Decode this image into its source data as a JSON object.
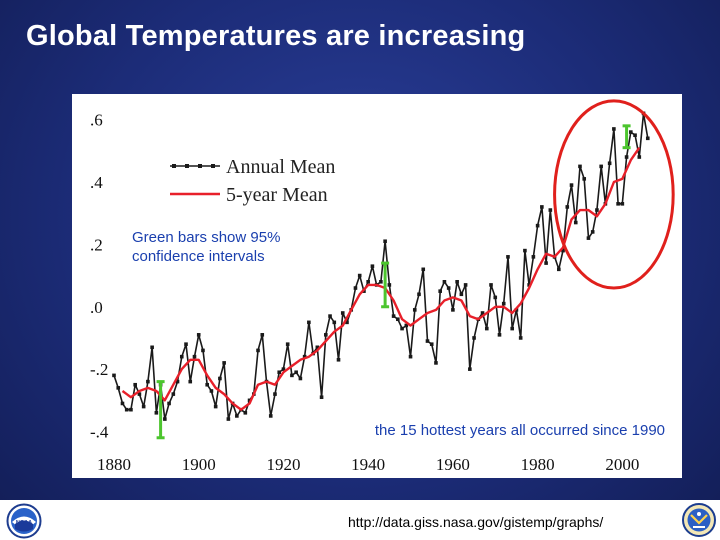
{
  "slide": {
    "title": "Global Temperatures are increasing",
    "source_url": "http://data.giss.nasa.gov/gistemp/graphs/",
    "logo_left_text": "NOAA"
  },
  "colors": {
    "annual": "#1a1a1a",
    "five_year": "#e8202a",
    "confidence": "#4cc52e",
    "highlight": "#e0201c",
    "annotation": "#1a3fae"
  },
  "chart_data": {
    "type": "line",
    "title": "",
    "xlabel": "",
    "ylabel": "",
    "xlim": [
      1880,
      2007
    ],
    "ylim": [
      -0.44,
      0.65
    ],
    "x_ticks": [
      1880,
      1900,
      1920,
      1940,
      1960,
      1980,
      2000
    ],
    "y_ticks": [
      {
        "value": 0.6,
        "label": ".6"
      },
      {
        "value": 0.4,
        "label": ".4"
      },
      {
        "value": 0.2,
        "label": ".2"
      },
      {
        "value": 0.0,
        "label": ".0"
      },
      {
        "value": -0.2,
        "label": "-.2"
      },
      {
        "value": -0.4,
        "label": "-.4"
      }
    ],
    "legend": {
      "placement": "top-left",
      "entries": [
        {
          "label": "Annual Mean",
          "series": "annual"
        },
        {
          "label": "5-year Mean",
          "series": "five_year"
        }
      ]
    },
    "annotations": [
      {
        "text_lines": [
          "Green bars show 95%",
          "confidence intervals"
        ]
      },
      {
        "text_lines": [
          "the 15 hottest years all occurred since 1990"
        ]
      }
    ],
    "highlight_ellipse": {
      "x_center": 1998,
      "y_center": 0.36,
      "x_halfwidth": 14,
      "y_halfwidth": 0.3
    },
    "series": [
      {
        "key": "annual",
        "name": "Annual Mean",
        "x": [
          1880,
          1881,
          1882,
          1883,
          1884,
          1885,
          1886,
          1887,
          1888,
          1889,
          1890,
          1891,
          1892,
          1893,
          1894,
          1895,
          1896,
          1897,
          1898,
          1899,
          1900,
          1901,
          1902,
          1903,
          1904,
          1905,
          1906,
          1907,
          1908,
          1909,
          1910,
          1911,
          1912,
          1913,
          1914,
          1915,
          1916,
          1917,
          1918,
          1919,
          1920,
          1921,
          1922,
          1923,
          1924,
          1925,
          1926,
          1927,
          1928,
          1929,
          1930,
          1931,
          1932,
          1933,
          1934,
          1935,
          1936,
          1937,
          1938,
          1939,
          1940,
          1941,
          1942,
          1943,
          1944,
          1945,
          1946,
          1947,
          1948,
          1949,
          1950,
          1951,
          1952,
          1953,
          1954,
          1955,
          1956,
          1957,
          1958,
          1959,
          1960,
          1961,
          1962,
          1963,
          1964,
          1965,
          1966,
          1967,
          1968,
          1969,
          1970,
          1971,
          1972,
          1973,
          1974,
          1975,
          1976,
          1977,
          1978,
          1979,
          1980,
          1981,
          1982,
          1983,
          1984,
          1985,
          1986,
          1987,
          1988,
          1989,
          1990,
          1991,
          1992,
          1993,
          1994,
          1995,
          1996,
          1997,
          1998,
          1999,
          2000,
          2001,
          2002,
          2003,
          2004,
          2005,
          2006
        ],
        "values": [
          -0.22,
          -0.26,
          -0.31,
          -0.33,
          -0.33,
          -0.25,
          -0.28,
          -0.32,
          -0.24,
          -0.13,
          -0.34,
          -0.25,
          -0.36,
          -0.31,
          -0.28,
          -0.24,
          -0.16,
          -0.12,
          -0.24,
          -0.16,
          -0.09,
          -0.14,
          -0.25,
          -0.27,
          -0.32,
          -0.23,
          -0.18,
          -0.36,
          -0.31,
          -0.35,
          -0.33,
          -0.34,
          -0.3,
          -0.28,
          -0.14,
          -0.09,
          -0.24,
          -0.35,
          -0.28,
          -0.21,
          -0.2,
          -0.12,
          -0.22,
          -0.21,
          -0.23,
          -0.16,
          -0.05,
          -0.15,
          -0.13,
          -0.29,
          -0.09,
          -0.03,
          -0.05,
          -0.17,
          -0.02,
          -0.05,
          -0.01,
          0.06,
          0.1,
          0.05,
          0.08,
          0.13,
          0.07,
          0.08,
          0.21,
          0.07,
          -0.03,
          -0.04,
          -0.07,
          -0.06,
          -0.16,
          -0.01,
          0.04,
          0.12,
          -0.11,
          -0.12,
          -0.18,
          0.05,
          0.08,
          0.06,
          -0.01,
          0.08,
          0.04,
          0.07,
          -0.2,
          -0.1,
          -0.04,
          -0.02,
          -0.07,
          0.07,
          0.03,
          -0.09,
          0.01,
          0.16,
          -0.07,
          -0.01,
          -0.1,
          0.18,
          0.07,
          0.16,
          0.26,
          0.32,
          0.14,
          0.31,
          0.16,
          0.12,
          0.18,
          0.32,
          0.39,
          0.27,
          0.45,
          0.41,
          0.22,
          0.24,
          0.31,
          0.45,
          0.33,
          0.46,
          0.57,
          0.33,
          0.33,
          0.48,
          0.56,
          0.55,
          0.48,
          0.62,
          0.54
        ]
      },
      {
        "key": "five_year",
        "name": "5-year Mean",
        "x": [
          1882,
          1884,
          1886,
          1888,
          1890,
          1892,
          1894,
          1896,
          1898,
          1900,
          1902,
          1904,
          1906,
          1908,
          1910,
          1912,
          1914,
          1916,
          1918,
          1920,
          1922,
          1924,
          1926,
          1928,
          1930,
          1932,
          1934,
          1936,
          1938,
          1940,
          1942,
          1944,
          1946,
          1948,
          1950,
          1952,
          1954,
          1956,
          1958,
          1960,
          1962,
          1964,
          1966,
          1968,
          1970,
          1972,
          1974,
          1976,
          1978,
          1980,
          1982,
          1984,
          1986,
          1988,
          1990,
          1992,
          1994,
          1996,
          1998,
          2000,
          2002,
          2004
        ],
        "values": [
          -0.27,
          -0.29,
          -0.27,
          -0.26,
          -0.27,
          -0.3,
          -0.25,
          -0.2,
          -0.17,
          -0.17,
          -0.22,
          -0.26,
          -0.28,
          -0.31,
          -0.33,
          -0.31,
          -0.25,
          -0.24,
          -0.25,
          -0.21,
          -0.19,
          -0.17,
          -0.16,
          -0.14,
          -0.11,
          -0.08,
          -0.06,
          -0.01,
          0.04,
          0.07,
          0.07,
          0.06,
          0.02,
          -0.04,
          -0.06,
          -0.04,
          -0.02,
          -0.01,
          0.02,
          0.03,
          0.02,
          -0.03,
          -0.04,
          -0.02,
          0.0,
          0.0,
          -0.02,
          0.01,
          0.06,
          0.12,
          0.17,
          0.16,
          0.19,
          0.28,
          0.31,
          0.31,
          0.29,
          0.33,
          0.4,
          0.41,
          0.47,
          0.51
        ]
      }
    ],
    "confidence_intervals": [
      {
        "x": 1891,
        "low": -0.42,
        "high": -0.24
      },
      {
        "x": 1944,
        "low": 0.0,
        "high": 0.14
      },
      {
        "x": 2001,
        "low": 0.51,
        "high": 0.58
      }
    ]
  }
}
